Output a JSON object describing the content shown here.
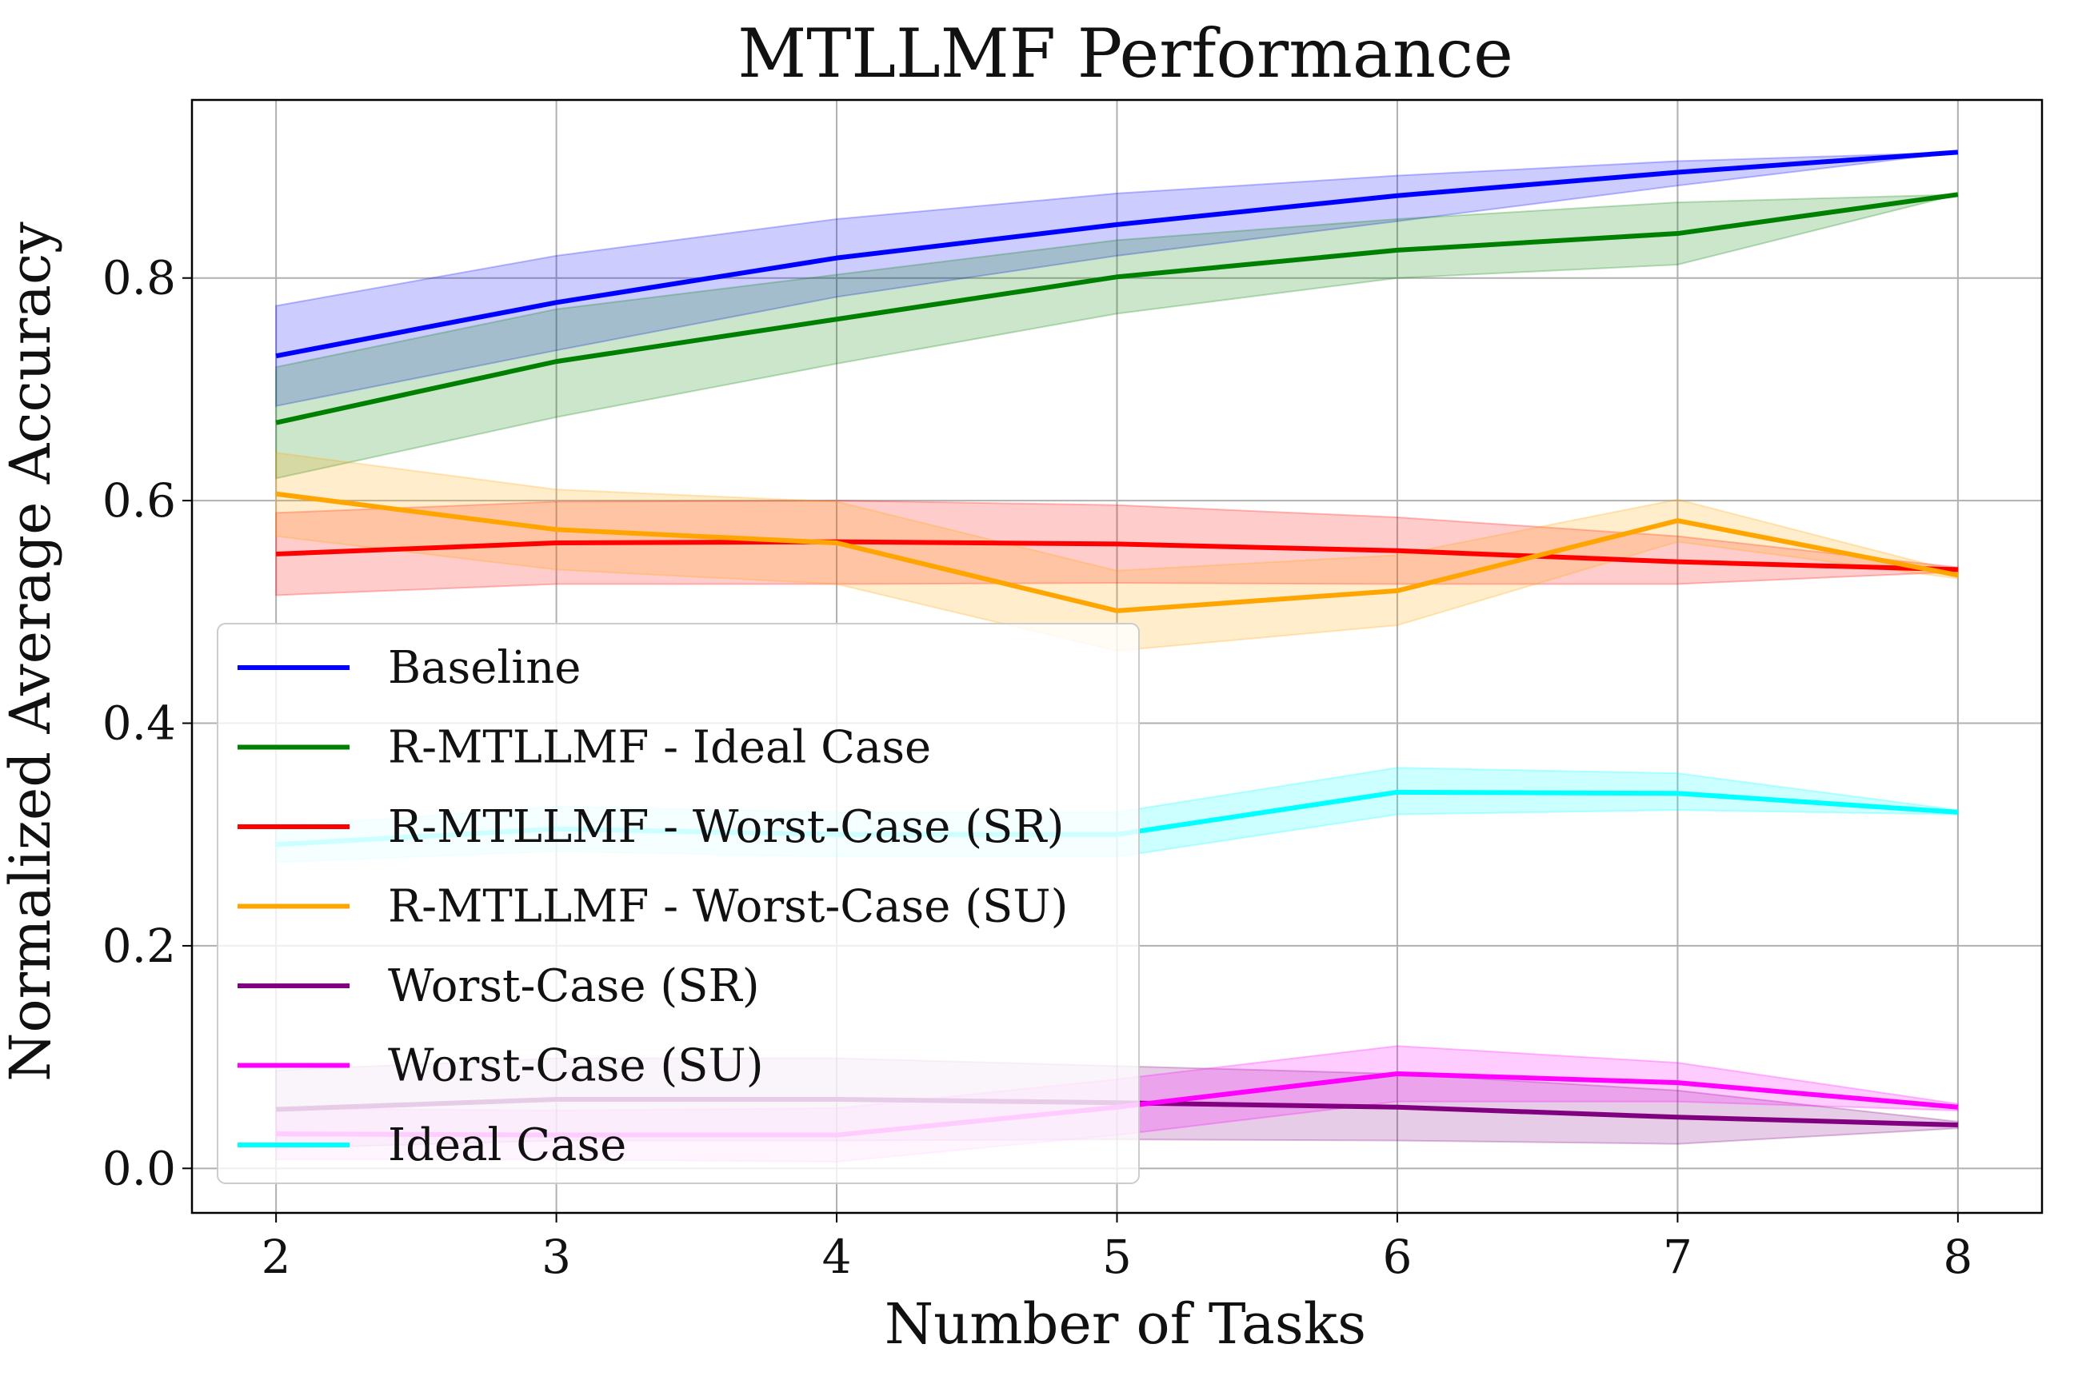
{
  "chart_data": {
    "type": "line",
    "title": "MTLLMF Performance",
    "xlabel": "Number of Tasks",
    "ylabel": "Normalized Average Accuracy",
    "xlim": [
      1.7,
      8.3
    ],
    "ylim": [
      -0.04,
      0.96
    ],
    "xticks": [
      "2",
      "3",
      "4",
      "5",
      "6",
      "7",
      "8"
    ],
    "yticks": [
      "0.0",
      "0.2",
      "0.4",
      "0.6",
      "0.8"
    ],
    "grid": true,
    "legend_position": "lower-left",
    "x": [
      2,
      3,
      4,
      5,
      6,
      7,
      8
    ],
    "series": [
      {
        "name": "Baseline",
        "color": "#0000ff",
        "values": [
          0.73,
          0.778,
          0.818,
          0.848,
          0.874,
          0.895,
          0.913
        ],
        "lower": [
          0.685,
          0.735,
          0.783,
          0.82,
          0.851,
          0.883,
          0.913
        ],
        "upper": [
          0.775,
          0.82,
          0.853,
          0.876,
          0.892,
          0.905,
          0.913
        ]
      },
      {
        "name": "R-MTLLMF - Ideal Case",
        "color": "#008000",
        "values": [
          0.67,
          0.725,
          0.763,
          0.801,
          0.825,
          0.84,
          0.875
        ],
        "lower": [
          0.62,
          0.675,
          0.723,
          0.768,
          0.8,
          0.812,
          0.875
        ],
        "upper": [
          0.72,
          0.772,
          0.803,
          0.834,
          0.853,
          0.868,
          0.875
        ]
      },
      {
        "name": "R-MTLLMF - Worst-Case (SR)",
        "color": "#ff0000",
        "values": [
          0.552,
          0.562,
          0.563,
          0.561,
          0.555,
          0.545,
          0.538
        ],
        "lower": [
          0.515,
          0.525,
          0.525,
          0.526,
          0.525,
          0.525,
          0.536
        ],
        "upper": [
          0.589,
          0.599,
          0.6,
          0.596,
          0.585,
          0.568,
          0.54
        ]
      },
      {
        "name": "R-MTLLMF - Worst-Case (SU)",
        "color": "#ffa500",
        "values": [
          0.606,
          0.574,
          0.562,
          0.501,
          0.519,
          0.582,
          0.533
        ],
        "lower": [
          0.568,
          0.538,
          0.525,
          0.465,
          0.488,
          0.563,
          0.53
        ],
        "upper": [
          0.643,
          0.61,
          0.599,
          0.537,
          0.551,
          0.601,
          0.536
        ]
      },
      {
        "name": "Worst-Case (SR)",
        "color": "#800080",
        "values": [
          0.053,
          0.062,
          0.062,
          0.059,
          0.055,
          0.046,
          0.039
        ],
        "lower": [
          0.018,
          0.025,
          0.025,
          0.026,
          0.025,
          0.022,
          0.036
        ],
        "upper": [
          0.088,
          0.099,
          0.099,
          0.092,
          0.085,
          0.07,
          0.042
        ]
      },
      {
        "name": "Worst-Case (SU)",
        "color": "#ff00ff",
        "values": [
          0.031,
          0.03,
          0.03,
          0.055,
          0.085,
          0.077,
          0.055
        ],
        "lower": [
          0.008,
          0.008,
          0.006,
          0.03,
          0.06,
          0.06,
          0.052
        ],
        "upper": [
          0.054,
          0.052,
          0.054,
          0.08,
          0.11,
          0.095,
          0.058
        ]
      },
      {
        "name": "Ideal Case",
        "color": "#00ffff",
        "values": [
          0.291,
          0.305,
          0.3,
          0.3,
          0.338,
          0.337,
          0.32
        ],
        "lower": [
          0.275,
          0.285,
          0.28,
          0.28,
          0.318,
          0.322,
          0.318
        ],
        "upper": [
          0.307,
          0.325,
          0.32,
          0.32,
          0.36,
          0.355,
          0.322
        ]
      }
    ]
  }
}
